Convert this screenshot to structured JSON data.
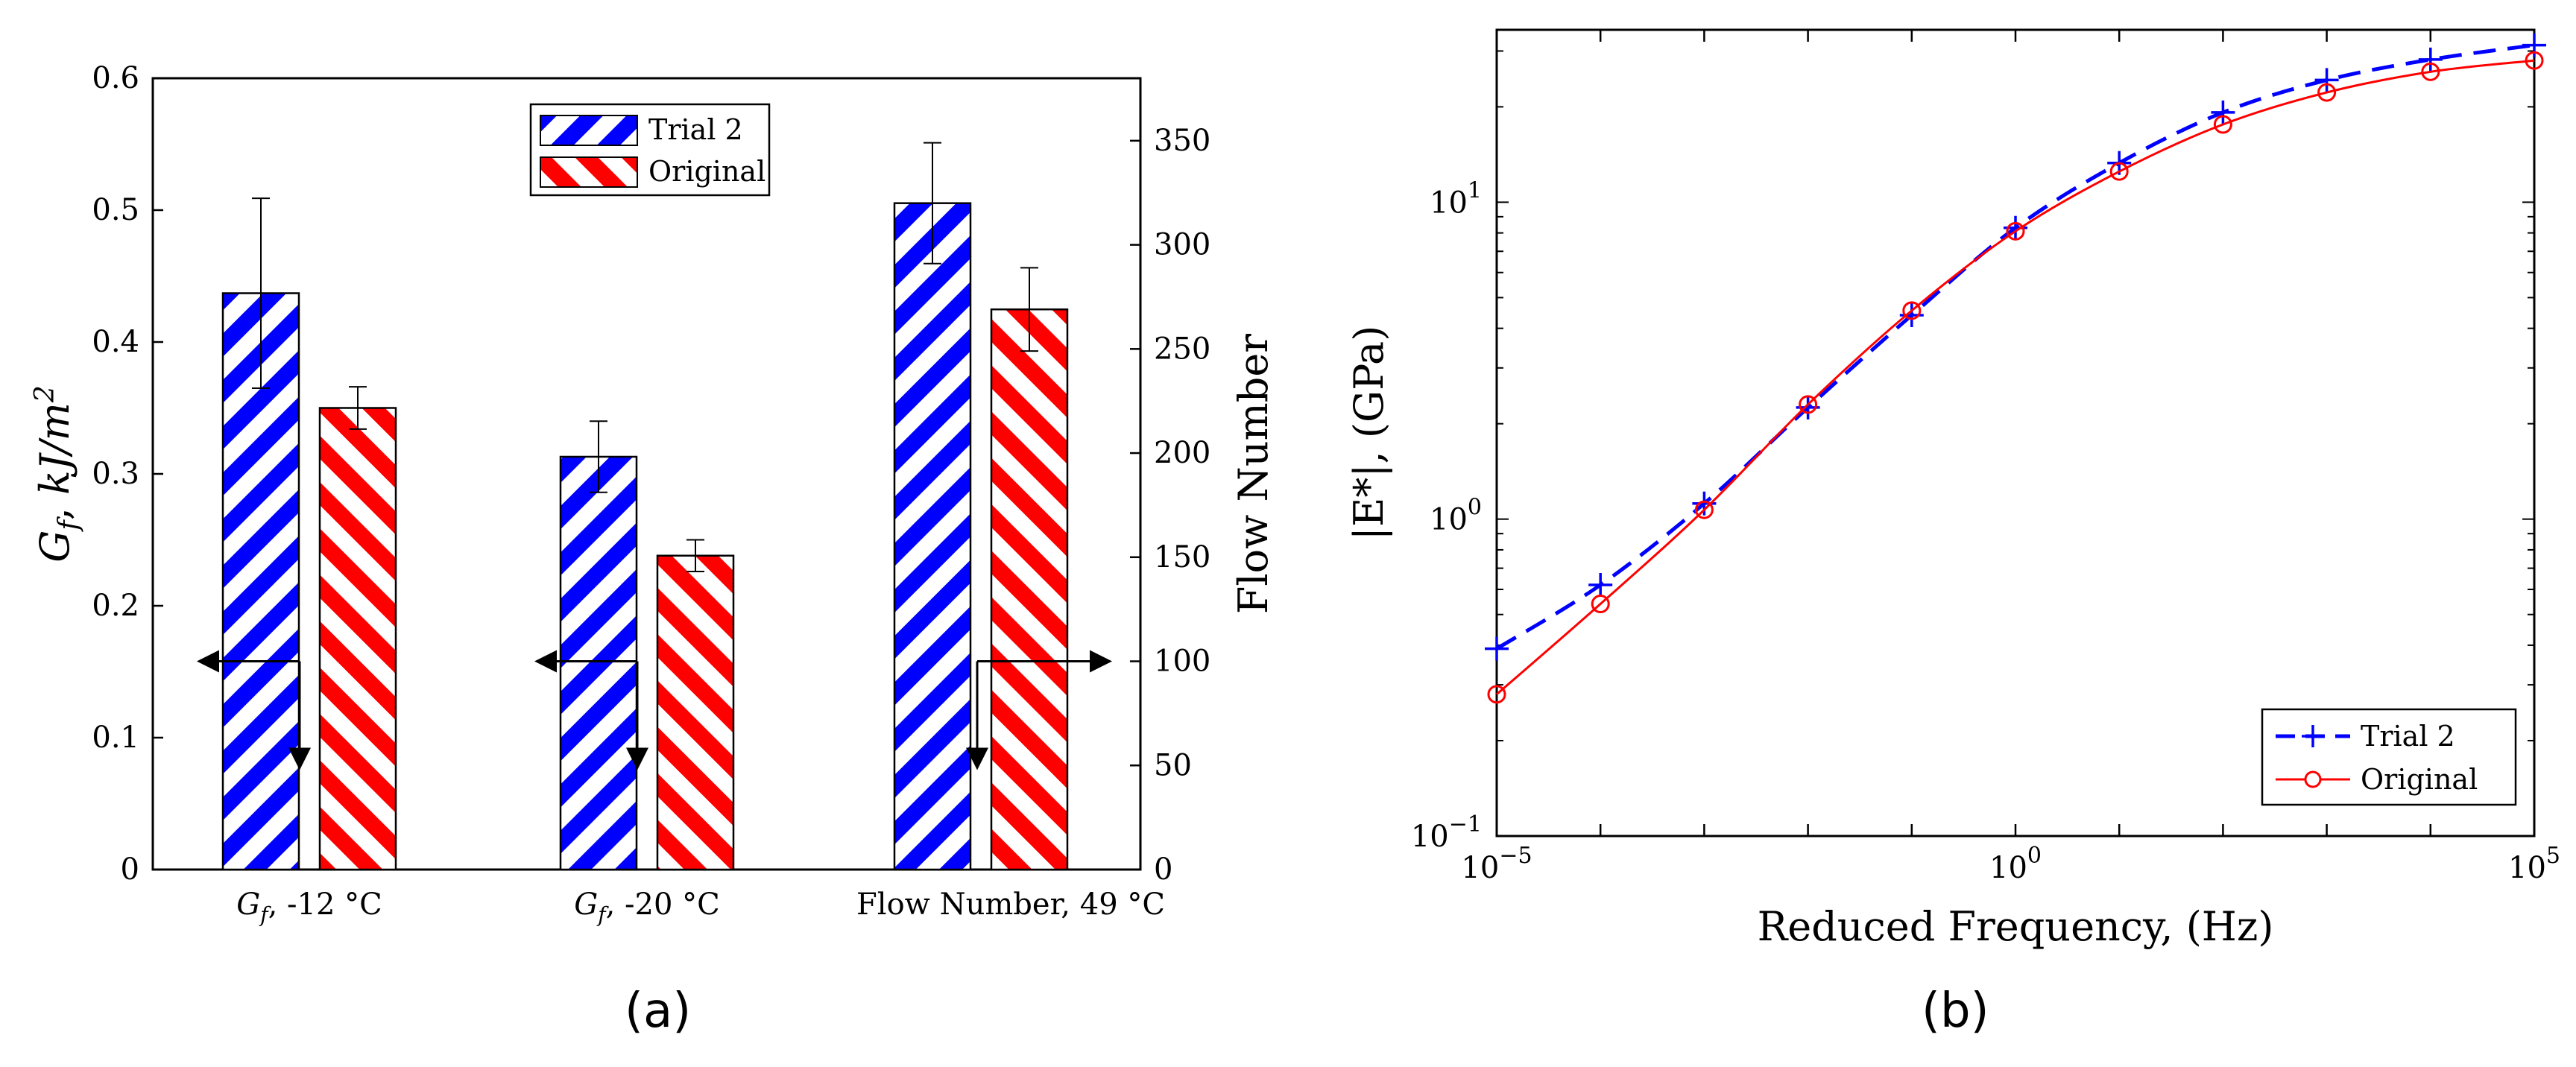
{
  "panels": {
    "a_label": "(a)",
    "b_label": "(b)"
  },
  "chart_data": [
    {
      "type": "bar",
      "categories": [
        "G_f, -12 °C",
        "G_f, -20 °C",
        "Flow Number, 49 °C"
      ],
      "category_labels": [
        {
          "sym": "G",
          "sub": "f",
          "text": ", -12 °C"
        },
        {
          "sym": "G",
          "sub": "f",
          "text": ", -20 °C"
        },
        {
          "sym": "",
          "sub": "",
          "text": "Flow Number, 49 °C"
        }
      ],
      "series": [
        {
          "name": "Trial 2",
          "color": "#0000ff",
          "values": [
            0.437,
            0.313,
            320
          ],
          "errors": [
            0.072,
            0.027,
            29
          ]
        },
        {
          "name": "Original",
          "color": "#ff0000",
          "values": [
            0.35,
            0.238,
            269
          ],
          "errors": [
            0.016,
            0.012,
            20
          ]
        }
      ],
      "value_axis_per_category": [
        "left",
        "left",
        "right"
      ],
      "ylabel_left": {
        "sym": "G",
        "sub": "f",
        "text": ", kJ/m",
        "sup": "2"
      },
      "ylabel_right": "Flow Number",
      "ylim_left": [
        0,
        0.6
      ],
      "ylim_right": [
        0,
        380
      ],
      "yticks_left": [
        "0",
        "0.1",
        "0.2",
        "0.3",
        "0.4",
        "0.5",
        "0.6"
      ],
      "yticks_right": [
        "0",
        "50",
        "100",
        "150",
        "200",
        "250",
        "300",
        "350"
      ],
      "legend": [
        "Trial 2",
        "Original"
      ],
      "legend_position": "top-center",
      "annotations": "arrows indicating which y-axis each bar group uses (left for G_f groups, right for Flow Number)"
    },
    {
      "type": "line",
      "xscale": "log",
      "yscale": "log",
      "xlabel": "Reduced Frequency, (Hz)",
      "ylabel": "|E*|, (GPa)",
      "xlim": [
        1e-05,
        100000.0
      ],
      "ylim": [
        0.1,
        35
      ],
      "xticks": [
        {
          "base": "10",
          "exp": "−5"
        },
        {
          "base": "10",
          "exp": "0"
        },
        {
          "base": "10",
          "exp": "5"
        }
      ],
      "yticks": [
        {
          "base": "10",
          "exp": "−1"
        },
        {
          "base": "10",
          "exp": "0"
        },
        {
          "base": "10",
          "exp": "1"
        }
      ],
      "series": [
        {
          "name": "Trial 2",
          "color": "#0000ff",
          "style": "dashed",
          "marker": "+",
          "x": [
            1e-05,
            0.0001,
            0.001,
            0.01,
            0.1,
            1,
            10,
            100,
            1000,
            10000,
            100000
          ],
          "y": [
            0.39,
            0.62,
            1.12,
            2.25,
            4.4,
            8.3,
            13.3,
            19.2,
            24.3,
            28.2,
            31.3
          ]
        },
        {
          "name": "Original",
          "color": "#ff0000",
          "style": "solid",
          "marker": "o",
          "x": [
            1e-05,
            0.0001,
            0.001,
            0.01,
            0.1,
            1,
            10,
            100,
            1000,
            10000,
            100000
          ],
          "y": [
            0.28,
            0.54,
            1.07,
            2.3,
            4.55,
            8.1,
            12.5,
            17.6,
            22.2,
            25.8,
            28.0
          ]
        }
      ],
      "legend": [
        "Trial 2",
        "Original"
      ],
      "legend_position": "bottom-right"
    }
  ]
}
